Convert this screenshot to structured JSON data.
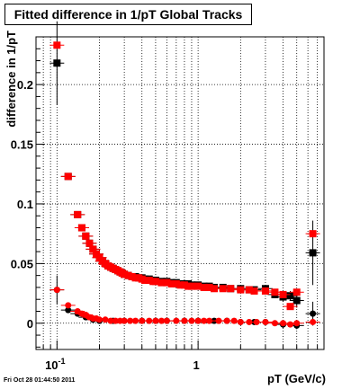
{
  "title": "Fitted difference in 1/pT  Global Tracks",
  "timestamp": "Fri Oct 28 01:44:50 2011",
  "chart_data": {
    "type": "scatter",
    "title": "Fitted difference in 1/pT  Global Tracks",
    "xlabel": "pT (GeV/c)",
    "ylabel": "difference in 1/pT",
    "x_scale": "log",
    "xlim": [
      0.071,
      7.8
    ],
    "ylim": [
      -0.022,
      0.24
    ],
    "x_ticks": [
      {
        "value": 0.1,
        "base": "10",
        "exp": "-1"
      },
      {
        "value": 1,
        "label": "1"
      }
    ],
    "y_ticks": [
      {
        "value": 0,
        "label": "0"
      },
      {
        "value": 0.05,
        "label": "0.05"
      },
      {
        "value": 0.1,
        "label": "0.1"
      },
      {
        "value": 0.15,
        "label": "0.15"
      },
      {
        "value": 0.2,
        "label": "0.2"
      }
    ],
    "grid": true,
    "colors": {
      "black": "#000000",
      "red": "#ff0000"
    },
    "series": [
      {
        "marker": "square",
        "color": "#000000",
        "err": [
          [
            0.1,
            0.218,
            0.035
          ],
          [
            0.12,
            0.123,
            0.0
          ],
          [
            0.14,
            0.091,
            0.0
          ],
          [
            0.15,
            0.08,
            0.0
          ],
          [
            0.16,
            0.073,
            0.0
          ],
          [
            0.17,
            0.067,
            0.0
          ],
          [
            0.18,
            0.062,
            0.0
          ],
          [
            0.19,
            0.058,
            0.0
          ],
          [
            0.2,
            0.055,
            0.0
          ],
          [
            0.21,
            0.052,
            0.0
          ],
          [
            0.22,
            0.05,
            0.0
          ],
          [
            0.23,
            0.048,
            0.0
          ],
          [
            0.24,
            0.047,
            0.0
          ],
          [
            0.25,
            0.046,
            0.0
          ],
          [
            0.26,
            0.045,
            0.0
          ],
          [
            0.27,
            0.044,
            0.0
          ],
          [
            0.28,
            0.043,
            0.0
          ],
          [
            0.29,
            0.042,
            0.0
          ],
          [
            0.3,
            0.041,
            0.0
          ],
          [
            0.32,
            0.04,
            0.0
          ],
          [
            0.34,
            0.039,
            0.0
          ],
          [
            0.36,
            0.039,
            0.0
          ],
          [
            0.38,
            0.038,
            0.0
          ],
          [
            0.4,
            0.038,
            0.0
          ],
          [
            0.42,
            0.037,
            0.0
          ],
          [
            0.45,
            0.037,
            0.0
          ],
          [
            0.48,
            0.036,
            0.0
          ],
          [
            0.5,
            0.036,
            0.0
          ],
          [
            0.55,
            0.035,
            0.0
          ],
          [
            0.6,
            0.035,
            0.0
          ],
          [
            0.65,
            0.034,
            0.0
          ],
          [
            0.7,
            0.034,
            0.0
          ],
          [
            0.75,
            0.033,
            0.0
          ],
          [
            0.8,
            0.033,
            0.0
          ],
          [
            0.85,
            0.033,
            0.0
          ],
          [
            0.9,
            0.032,
            0.0
          ],
          [
            1.0,
            0.032,
            0.0
          ],
          [
            1.1,
            0.031,
            0.0
          ],
          [
            1.2,
            0.031,
            0.0
          ],
          [
            1.3,
            0.03,
            0.0
          ],
          [
            1.5,
            0.03,
            0.0
          ],
          [
            1.7,
            0.029,
            0.0
          ],
          [
            2.0,
            0.029,
            0.0
          ],
          [
            2.3,
            0.028,
            0.0
          ],
          [
            2.5,
            0.028,
            0.0
          ],
          [
            3.0,
            0.029,
            0.003
          ],
          [
            3.5,
            0.024,
            0.003
          ],
          [
            4.0,
            0.022,
            0.004
          ],
          [
            4.5,
            0.023,
            0.004
          ],
          [
            5.0,
            0.019,
            0.006
          ],
          [
            6.5,
            0.059,
            0.027
          ]
        ]
      },
      {
        "marker": "circle",
        "color": "#000000",
        "err": [
          [
            0.1,
            0.028,
            0.012
          ],
          [
            0.12,
            0.011,
            0.0
          ],
          [
            0.14,
            0.008,
            0.0
          ],
          [
            0.16,
            0.005,
            0.0
          ],
          [
            0.18,
            0.003,
            0.0
          ],
          [
            0.2,
            0.002,
            0.0
          ],
          [
            0.25,
            0.002,
            0.0
          ],
          [
            0.3,
            0.002,
            0.0
          ],
          [
            0.4,
            0.002,
            0.0
          ],
          [
            0.5,
            0.002,
            0.0
          ],
          [
            0.6,
            0.002,
            0.0
          ],
          [
            0.8,
            0.002,
            0.0
          ],
          [
            1.0,
            0.002,
            0.0
          ],
          [
            1.3,
            0.002,
            0.0
          ],
          [
            1.6,
            0.002,
            0.0
          ],
          [
            2.0,
            0.001,
            0.0
          ],
          [
            2.5,
            0.001,
            0.0
          ],
          [
            3.0,
            0.001,
            0.0
          ],
          [
            4.0,
            -0.001,
            0.003
          ],
          [
            5.0,
            -0.002,
            0.003
          ],
          [
            6.5,
            0.008,
            0.01
          ]
        ]
      },
      {
        "marker": "square",
        "color": "#ff0000",
        "err": [
          [
            0.1,
            0.233,
            0.0
          ],
          [
            0.12,
            0.123,
            0.0
          ],
          [
            0.14,
            0.091,
            0.0
          ],
          [
            0.15,
            0.08,
            0.0
          ],
          [
            0.16,
            0.073,
            0.0
          ],
          [
            0.17,
            0.067,
            0.0
          ],
          [
            0.18,
            0.062,
            0.0
          ],
          [
            0.19,
            0.058,
            0.0
          ],
          [
            0.2,
            0.055,
            0.0
          ],
          [
            0.21,
            0.052,
            0.0
          ],
          [
            0.22,
            0.05,
            0.0
          ],
          [
            0.23,
            0.048,
            0.0
          ],
          [
            0.24,
            0.047,
            0.0
          ],
          [
            0.25,
            0.046,
            0.0
          ],
          [
            0.26,
            0.045,
            0.0
          ],
          [
            0.27,
            0.044,
            0.0
          ],
          [
            0.28,
            0.043,
            0.0
          ],
          [
            0.29,
            0.042,
            0.0
          ],
          [
            0.3,
            0.041,
            0.0
          ],
          [
            0.32,
            0.04,
            0.0
          ],
          [
            0.34,
            0.039,
            0.0
          ],
          [
            0.36,
            0.038,
            0.0
          ],
          [
            0.38,
            0.038,
            0.0
          ],
          [
            0.4,
            0.037,
            0.0
          ],
          [
            0.42,
            0.036,
            0.0
          ],
          [
            0.45,
            0.036,
            0.0
          ],
          [
            0.48,
            0.035,
            0.0
          ],
          [
            0.5,
            0.035,
            0.0
          ],
          [
            0.55,
            0.034,
            0.0
          ],
          [
            0.6,
            0.034,
            0.0
          ],
          [
            0.65,
            0.033,
            0.0
          ],
          [
            0.7,
            0.033,
            0.0
          ],
          [
            0.75,
            0.032,
            0.0
          ],
          [
            0.8,
            0.032,
            0.0
          ],
          [
            0.85,
            0.031,
            0.0
          ],
          [
            0.9,
            0.031,
            0.0
          ],
          [
            1.0,
            0.031,
            0.0
          ],
          [
            1.1,
            0.03,
            0.0
          ],
          [
            1.2,
            0.03,
            0.0
          ],
          [
            1.3,
            0.029,
            0.0
          ],
          [
            1.5,
            0.029,
            0.0
          ],
          [
            1.7,
            0.029,
            0.0
          ],
          [
            2.0,
            0.028,
            0.0
          ],
          [
            2.3,
            0.028,
            0.0
          ],
          [
            2.5,
            0.027,
            0.0
          ],
          [
            3.0,
            0.027,
            0.0
          ],
          [
            3.5,
            0.026,
            0.0
          ],
          [
            4.0,
            0.024,
            0.0
          ],
          [
            4.5,
            0.014,
            0.0
          ],
          [
            5.0,
            0.026,
            0.0
          ],
          [
            6.5,
            0.075,
            0.0
          ]
        ]
      },
      {
        "marker": "circle",
        "color": "#ff0000",
        "err": [
          [
            0.1,
            0.028,
            0.0
          ],
          [
            0.12,
            0.015,
            0.0
          ],
          [
            0.14,
            0.01,
            0.0
          ],
          [
            0.15,
            0.008,
            0.0
          ],
          [
            0.16,
            0.007,
            0.0
          ],
          [
            0.17,
            0.005,
            0.0
          ],
          [
            0.18,
            0.004,
            0.0
          ],
          [
            0.19,
            0.004,
            0.0
          ],
          [
            0.2,
            0.003,
            0.0
          ],
          [
            0.22,
            0.003,
            0.0
          ],
          [
            0.24,
            0.002,
            0.0
          ],
          [
            0.26,
            0.002,
            0.0
          ],
          [
            0.28,
            0.002,
            0.0
          ],
          [
            0.3,
            0.002,
            0.0
          ],
          [
            0.33,
            0.002,
            0.0
          ],
          [
            0.36,
            0.002,
            0.0
          ],
          [
            0.4,
            0.002,
            0.0
          ],
          [
            0.45,
            0.002,
            0.0
          ],
          [
            0.5,
            0.002,
            0.0
          ],
          [
            0.55,
            0.002,
            0.0
          ],
          [
            0.6,
            0.002,
            0.0
          ],
          [
            0.7,
            0.002,
            0.0
          ],
          [
            0.8,
            0.002,
            0.0
          ],
          [
            0.9,
            0.002,
            0.0
          ],
          [
            1.0,
            0.002,
            0.0
          ],
          [
            1.1,
            0.002,
            0.0
          ],
          [
            1.2,
            0.002,
            0.0
          ],
          [
            1.4,
            0.002,
            0.0
          ],
          [
            1.6,
            0.002,
            0.0
          ],
          [
            1.8,
            0.002,
            0.0
          ],
          [
            2.0,
            0.001,
            0.0
          ],
          [
            2.3,
            0.001,
            0.0
          ],
          [
            2.6,
            0.001,
            0.0
          ],
          [
            3.0,
            0.001,
            0.0
          ],
          [
            3.5,
            0.0,
            0.0
          ],
          [
            4.0,
            0.0,
            0.0
          ],
          [
            4.5,
            -0.001,
            0.0
          ],
          [
            5.0,
            0.0,
            0.0
          ],
          [
            6.5,
            0.001,
            0.0
          ]
        ]
      }
    ]
  }
}
